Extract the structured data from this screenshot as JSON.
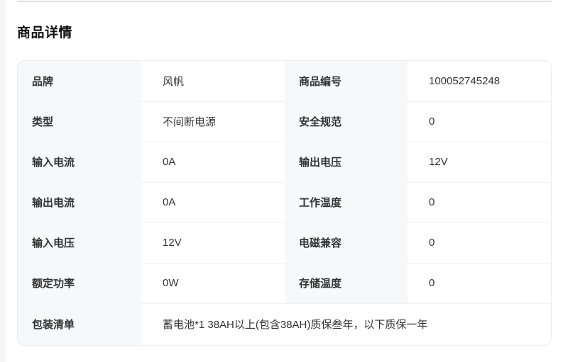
{
  "page": {
    "title": "商品详情"
  },
  "spec_table": {
    "rows": [
      {
        "cells": [
          {
            "label": "品牌",
            "value": "风帆"
          },
          {
            "label": "商品编号",
            "value": "100052745248"
          }
        ]
      },
      {
        "cells": [
          {
            "label": "类型",
            "value": "不间断电源"
          },
          {
            "label": "安全规范",
            "value": "0"
          }
        ]
      },
      {
        "cells": [
          {
            "label": "输入电流",
            "value": "0A"
          },
          {
            "label": "输出电压",
            "value": "12V"
          }
        ]
      },
      {
        "cells": [
          {
            "label": "输出电流",
            "value": "0A"
          },
          {
            "label": "工作温度",
            "value": "0"
          }
        ]
      },
      {
        "cells": [
          {
            "label": "输入电压",
            "value": "12V"
          },
          {
            "label": "电磁兼容",
            "value": "0"
          }
        ]
      },
      {
        "cells": [
          {
            "label": "额定功率",
            "value": "0W"
          },
          {
            "label": "存储温度",
            "value": "0"
          }
        ]
      }
    ],
    "span_row": {
      "label": "包装清单",
      "value": "蓄电池*1 38AH以上(包含38AH)质保叁年，以下质保一年"
    }
  },
  "colors": {
    "label_cell_bg": "#f7f8fa",
    "card_border": "#ececec",
    "row_divider": "#f1f1f1",
    "top_rule": "#dcdcdc",
    "text": "#333333",
    "title_text": "#111111",
    "left_gutter_bg": "#f5f6fa"
  }
}
